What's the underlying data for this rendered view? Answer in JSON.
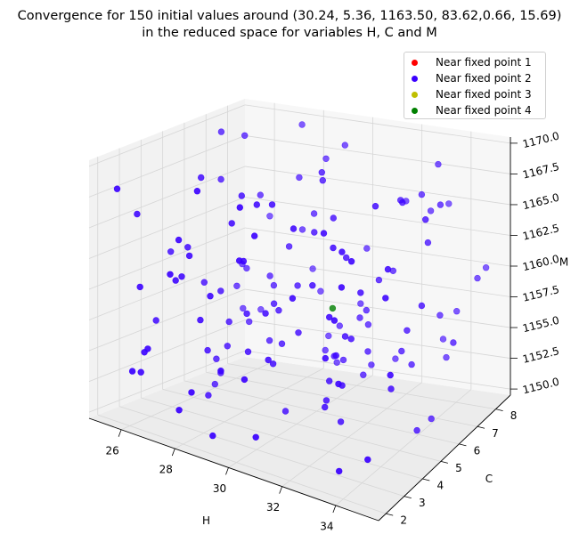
{
  "chart_data": {
    "type": "scatter",
    "projection": "3d",
    "title_line1": "Convergence for 150 initial values around (30.24, 5.36, 1163.50, 83.62,0.66, 15.69)",
    "title_line2": "in the reduced space for variables H, C and M",
    "xlabel": "H",
    "ylabel": "C",
    "zlabel": "M",
    "xlim": [
      24.8,
      35.6
    ],
    "ylim": [
      1.6,
      8.8
    ],
    "zlim": [
      1149.5,
      1170.5
    ],
    "x_ticks": [
      "26",
      "28",
      "30",
      "32",
      "34"
    ],
    "y_ticks": [
      "2",
      "3",
      "4",
      "5",
      "6",
      "7",
      "8"
    ],
    "z_ticks": [
      "1150.0",
      "1152.5",
      "1155.0",
      "1157.5",
      "1160.0",
      "1162.5",
      "1165.0",
      "1167.5",
      "1170.0"
    ],
    "grid": true,
    "legend_position": "upper-right",
    "series": [
      {
        "name": "Near fixed point 1",
        "color": "#ff0000",
        "points": []
      },
      {
        "name": "Near fixed point 2",
        "color": "#3a00ff",
        "points": []
      },
      {
        "name": "Near fixed point 3",
        "color": "#bfbf00",
        "points": []
      },
      {
        "name": "Near fixed point 4",
        "color": "#008000",
        "points": [
          [
            31.7,
            4.6,
            1160.3
          ]
        ]
      }
    ],
    "series2_count": 149
  }
}
